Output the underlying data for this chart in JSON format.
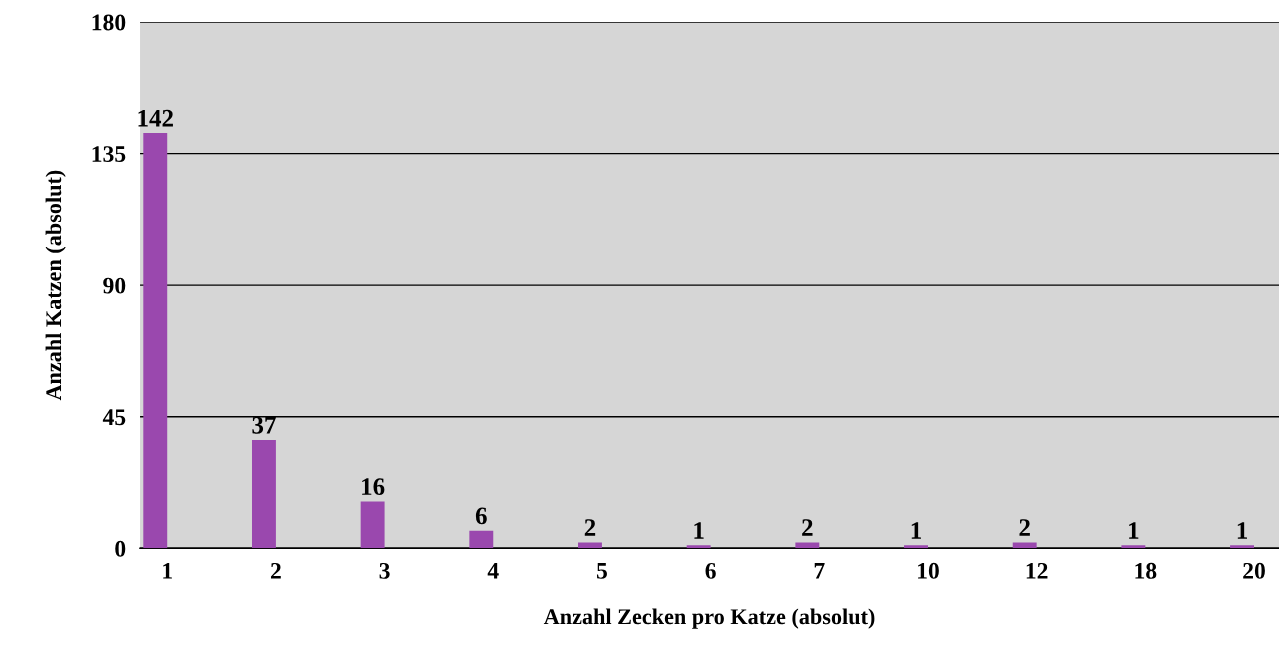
{
  "chart_data": {
    "type": "bar",
    "xlabel": "Anzahl Zecken pro Katze (absolut)",
    "ylabel": "Anzahl Katzen (absolut)",
    "categories": [
      "1",
      "2",
      "3",
      "4",
      "5",
      "6",
      "7",
      "10",
      "12",
      "18",
      "20"
    ],
    "values": [
      142,
      37,
      16,
      6,
      2,
      1,
      2,
      1,
      2,
      1,
      1
    ],
    "color": "#9a48ae",
    "ylim": [
      0,
      180
    ],
    "yticks": [
      0,
      45,
      90,
      135,
      180
    ],
    "grid": "y",
    "data_labels": true
  }
}
